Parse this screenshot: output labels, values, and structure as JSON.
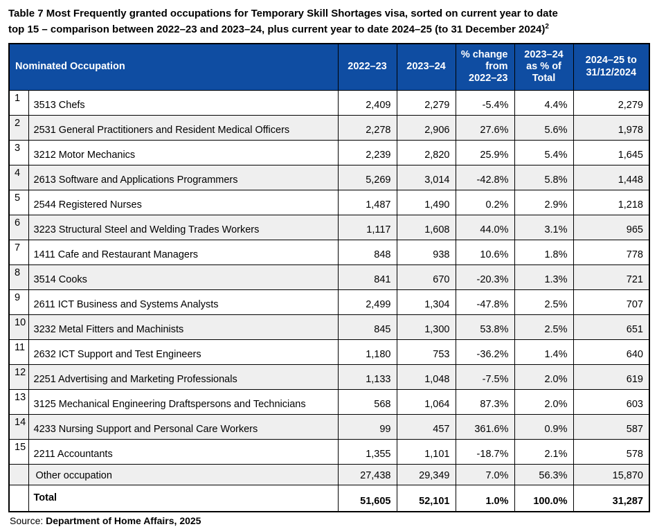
{
  "title": {
    "line1": "Table 7 Most Frequently granted occupations for Temporary Skill Shortages visa, sorted on current year to date",
    "line2": "top 15 – comparison between 2022–23 and 2023–24, plus current year to date 2024–25 (to 31 December 2024)",
    "superscript": "2"
  },
  "table": {
    "columns": {
      "occupation": "Nominated Occupation",
      "y2022_23": "2022–23",
      "y2023_24": "2023–24",
      "pct_change": "% change from 2022–23",
      "pct_of_total": "2023–24 as % of Total",
      "ytd_2024_25": "2024–25 to 31/12/2024"
    },
    "rows": [
      {
        "rank": "1",
        "occupation": "3513 Chefs",
        "y2022_23": "2,409",
        "y2023_24": "2,279",
        "pct_change": "-5.4%",
        "pct_of_total": "4.4%",
        "ytd_2024_25": "2,279"
      },
      {
        "rank": "2",
        "occupation": "2531 General Practitioners and Resident Medical Officers",
        "y2022_23": "2,278",
        "y2023_24": "2,906",
        "pct_change": "27.6%",
        "pct_of_total": "5.6%",
        "ytd_2024_25": "1,978"
      },
      {
        "rank": "3",
        "occupation": "3212 Motor Mechanics",
        "y2022_23": "2,239",
        "y2023_24": "2,820",
        "pct_change": "25.9%",
        "pct_of_total": "5.4%",
        "ytd_2024_25": "1,645"
      },
      {
        "rank": "4",
        "occupation": "2613 Software and Applications Programmers",
        "y2022_23": "5,269",
        "y2023_24": "3,014",
        "pct_change": "-42.8%",
        "pct_of_total": "5.8%",
        "ytd_2024_25": "1,448"
      },
      {
        "rank": "5",
        "occupation": "2544 Registered Nurses",
        "y2022_23": "1,487",
        "y2023_24": "1,490",
        "pct_change": "0.2%",
        "pct_of_total": "2.9%",
        "ytd_2024_25": "1,218"
      },
      {
        "rank": "6",
        "occupation": "3223 Structural Steel and Welding Trades Workers",
        "y2022_23": "1,117",
        "y2023_24": "1,608",
        "pct_change": "44.0%",
        "pct_of_total": "3.1%",
        "ytd_2024_25": "965"
      },
      {
        "rank": "7",
        "occupation": "1411 Cafe and Restaurant Managers",
        "y2022_23": "848",
        "y2023_24": "938",
        "pct_change": "10.6%",
        "pct_of_total": "1.8%",
        "ytd_2024_25": "778"
      },
      {
        "rank": "8",
        "occupation": "3514 Cooks",
        "y2022_23": "841",
        "y2023_24": "670",
        "pct_change": "-20.3%",
        "pct_of_total": "1.3%",
        "ytd_2024_25": "721"
      },
      {
        "rank": "9",
        "occupation": "2611 ICT Business and Systems Analysts",
        "y2022_23": "2,499",
        "y2023_24": "1,304",
        "pct_change": "-47.8%",
        "pct_of_total": "2.5%",
        "ytd_2024_25": "707"
      },
      {
        "rank": "10",
        "occupation": "3232 Metal Fitters and Machinists",
        "y2022_23": "845",
        "y2023_24": "1,300",
        "pct_change": "53.8%",
        "pct_of_total": "2.5%",
        "ytd_2024_25": "651"
      },
      {
        "rank": "11",
        "occupation": "2632 ICT Support and Test Engineers",
        "y2022_23": "1,180",
        "y2023_24": "753",
        "pct_change": "-36.2%",
        "pct_of_total": "1.4%",
        "ytd_2024_25": "640"
      },
      {
        "rank": "12",
        "occupation": "2251 Advertising and Marketing Professionals",
        "y2022_23": "1,133",
        "y2023_24": "1,048",
        "pct_change": "-7.5%",
        "pct_of_total": "2.0%",
        "ytd_2024_25": "619"
      },
      {
        "rank": "13",
        "occupation": "3125 Mechanical Engineering Draftspersons and Technicians",
        "y2022_23": "568",
        "y2023_24": "1,064",
        "pct_change": "87.3%",
        "pct_of_total": "2.0%",
        "ytd_2024_25": "603"
      },
      {
        "rank": "14",
        "occupation": "4233 Nursing Support and Personal Care Workers",
        "y2022_23": "99",
        "y2023_24": "457",
        "pct_change": "361.6%",
        "pct_of_total": "0.9%",
        "ytd_2024_25": "587"
      },
      {
        "rank": "15",
        "occupation": "2211 Accountants",
        "y2022_23": "1,355",
        "y2023_24": "1,101",
        "pct_change": "-18.7%",
        "pct_of_total": "2.1%",
        "ytd_2024_25": "578"
      }
    ],
    "other_row": {
      "rank": "",
      "occupation": "Other occupation",
      "y2022_23": "27,438",
      "y2023_24": "29,349",
      "pct_change": "7.0%",
      "pct_of_total": "56.3%",
      "ytd_2024_25": "15,870"
    },
    "total_row": {
      "rank": "",
      "occupation": "Total",
      "y2022_23": "51,605",
      "y2023_24": "52,101",
      "pct_change": "1.0%",
      "pct_of_total": "100.0%",
      "ytd_2024_25": "31,287"
    }
  },
  "source": {
    "prefix": "Source: ",
    "text": "Department of Home Affairs, 2025"
  },
  "colors": {
    "header_bg": "#0F4DA2",
    "alt_row": "#EFEFEF",
    "border": "#000000",
    "header_text": "#FFFFFF"
  }
}
